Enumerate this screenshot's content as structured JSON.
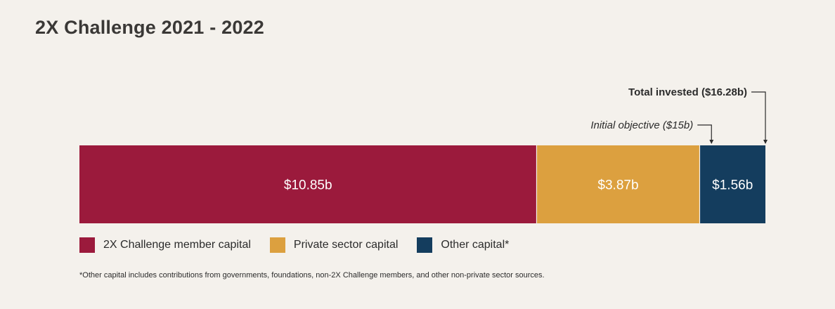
{
  "chart_data": {
    "type": "bar",
    "orientation": "horizontal-stacked",
    "title": "2X Challenge 2021 - 2022",
    "series": [
      {
        "name": "2X Challenge member capital",
        "value": 10.85,
        "label": "$10.85b",
        "color": "#9b1a3c"
      },
      {
        "name": "Private sector capital",
        "value": 3.87,
        "label": "$3.87b",
        "color": "#dca03f"
      },
      {
        "name": "Other capital*",
        "value": 1.56,
        "label": "$1.56b",
        "color": "#143d5e"
      }
    ],
    "xlim": [
      0,
      16.28
    ],
    "annotations": [
      {
        "text": "Initial objective ($15b)",
        "value": 15,
        "style": "italic"
      },
      {
        "text": "Total invested ($16.28b)",
        "value": 16.28,
        "style": "bold"
      }
    ],
    "legend_placement": "bottom-left"
  },
  "footnote": "*Other capital includes contributions from governments, foundations, non-2X Challenge members, and other non-private sector sources."
}
